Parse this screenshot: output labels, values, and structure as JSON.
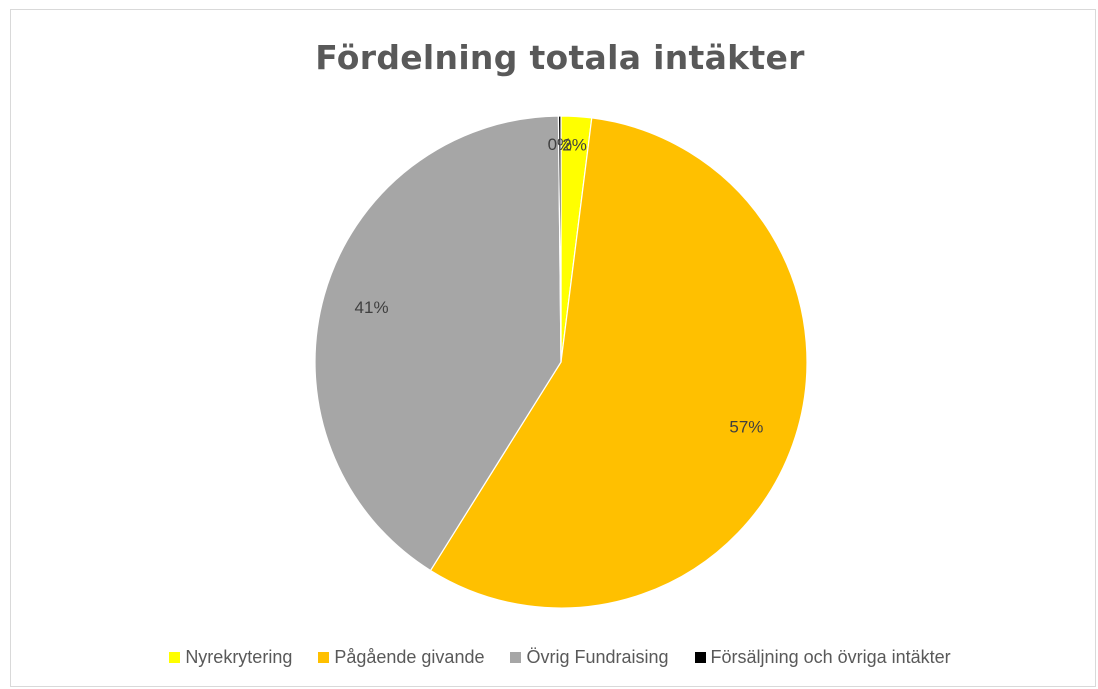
{
  "chart_data": {
    "type": "pie",
    "title": "Fördelning totala intäkter",
    "categories": [
      "Nyrekrytering",
      "Pågående givande",
      "Övrig Fundraising",
      "Försäljning och övriga intäkter"
    ],
    "values": [
      2,
      57,
      41,
      0
    ],
    "data_labels": [
      "2%",
      "57%",
      "41%",
      "0%"
    ],
    "colors": [
      "#ffff00",
      "#ffc000",
      "#a6a6a6",
      "#000000"
    ],
    "legend_position": "bottom",
    "start_angle_deg": 0,
    "direction": "clockwise"
  }
}
